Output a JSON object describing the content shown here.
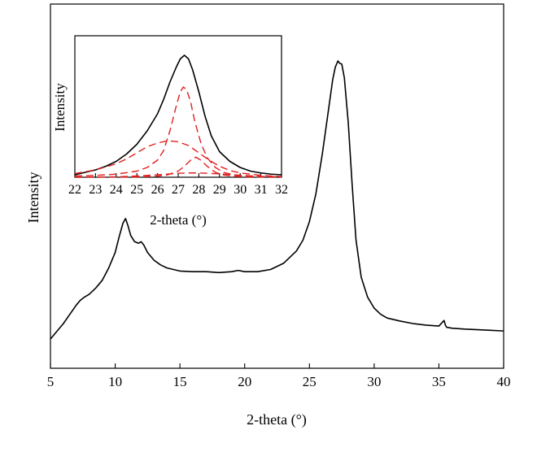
{
  "chart_data": [
    {
      "type": "line",
      "role": "main",
      "xlabel": "2-theta (°)",
      "ylabel": "Intensity",
      "xlim": [
        5,
        40
      ],
      "xticks": [
        "5",
        "10",
        "15",
        "20",
        "25",
        "30",
        "35",
        "40"
      ],
      "y_tick_labels": false,
      "ylim": [
        0,
        1
      ],
      "grid": false,
      "series": [
        {
          "color": "#000000",
          "style": "solid",
          "x": [
            5,
            5.5,
            6,
            6.5,
            7,
            7.3,
            7.6,
            8,
            8.5,
            9,
            9.5,
            10,
            10.3,
            10.6,
            10.8,
            11,
            11.2,
            11.5,
            11.8,
            12,
            12.2,
            12.5,
            13,
            13.5,
            14,
            15,
            16,
            17,
            18,
            19,
            19.5,
            20,
            21,
            22,
            23,
            24,
            24.5,
            25,
            25.5,
            26,
            26.5,
            26.8,
            27,
            27.2,
            27.35,
            27.5,
            27.7,
            28,
            28.3,
            28.6,
            29,
            29.5,
            30,
            30.5,
            31,
            32,
            33,
            34,
            35,
            35.4,
            35.5,
            35.6,
            36,
            37,
            38,
            39,
            40
          ],
          "y": [
            0.1,
            0.125,
            0.15,
            0.18,
            0.21,
            0.225,
            0.235,
            0.245,
            0.265,
            0.29,
            0.33,
            0.38,
            0.43,
            0.475,
            0.49,
            0.465,
            0.435,
            0.415,
            0.41,
            0.415,
            0.405,
            0.38,
            0.355,
            0.34,
            0.33,
            0.32,
            0.318,
            0.318,
            0.315,
            0.318,
            0.322,
            0.318,
            0.318,
            0.325,
            0.345,
            0.385,
            0.42,
            0.48,
            0.57,
            0.7,
            0.85,
            0.94,
            0.98,
            1.0,
            0.992,
            0.99,
            0.945,
            0.8,
            0.6,
            0.42,
            0.3,
            0.235,
            0.2,
            0.18,
            0.168,
            0.158,
            0.15,
            0.145,
            0.142,
            0.16,
            0.145,
            0.138,
            0.135,
            0.132,
            0.13,
            0.128,
            0.126
          ]
        }
      ]
    },
    {
      "type": "line",
      "role": "inset",
      "xlabel": "2-theta (°)",
      "ylabel": "Intensity",
      "xlim": [
        22,
        32
      ],
      "xticks": [
        "22",
        "23",
        "24",
        "25",
        "26",
        "27",
        "28",
        "29",
        "30",
        "31",
        "32"
      ],
      "y_tick_labels": false,
      "ylim": [
        0,
        1
      ],
      "grid": false,
      "series": [
        {
          "color": "#000000",
          "style": "solid",
          "x": [
            22,
            22.5,
            23,
            23.5,
            24,
            24.5,
            25,
            25.5,
            26,
            26.3,
            26.6,
            26.9,
            27.1,
            27.3,
            27.5,
            27.7,
            28,
            28.3,
            28.6,
            29,
            29.5,
            30,
            30.5,
            31,
            31.5,
            32
          ],
          "y": [
            0.02,
            0.04,
            0.06,
            0.09,
            0.13,
            0.19,
            0.27,
            0.38,
            0.52,
            0.64,
            0.78,
            0.9,
            0.97,
            1.0,
            0.97,
            0.88,
            0.7,
            0.5,
            0.34,
            0.21,
            0.13,
            0.08,
            0.05,
            0.035,
            0.025,
            0.02
          ]
        },
        {
          "color": "#e02020",
          "style": "dashed",
          "x": [
            22,
            23,
            24,
            24.5,
            25,
            25.5,
            26,
            26.5,
            27,
            27.5,
            28,
            28.5,
            29,
            29.5,
            30,
            31,
            32
          ],
          "y": [
            0.03,
            0.06,
            0.11,
            0.15,
            0.2,
            0.25,
            0.28,
            0.3,
            0.29,
            0.26,
            0.2,
            0.14,
            0.09,
            0.055,
            0.035,
            0.015,
            0.005
          ]
        },
        {
          "color": "#e02020",
          "style": "dashed",
          "x": [
            22,
            23,
            24,
            25,
            25.5,
            26,
            26.3,
            26.6,
            26.9,
            27.1,
            27.25,
            27.4,
            27.6,
            27.8,
            28.1,
            28.4,
            28.8,
            29.2,
            29.8,
            30.5,
            31,
            32
          ],
          "y": [
            0.01,
            0.015,
            0.025,
            0.05,
            0.08,
            0.14,
            0.22,
            0.38,
            0.58,
            0.7,
            0.74,
            0.72,
            0.62,
            0.46,
            0.28,
            0.16,
            0.08,
            0.04,
            0.015,
            0.008,
            0.005,
            0.002
          ]
        },
        {
          "color": "#e02020",
          "style": "dashed",
          "x": [
            22,
            25,
            26,
            26.5,
            27,
            27.3,
            27.6,
            27.85,
            28.1,
            28.4,
            28.8,
            29.2,
            29.8,
            30.5,
            32
          ],
          "y": [
            0,
            0.002,
            0.008,
            0.02,
            0.05,
            0.09,
            0.14,
            0.165,
            0.14,
            0.09,
            0.04,
            0.018,
            0.006,
            0.002,
            0
          ]
        },
        {
          "color": "#e02020",
          "style": "dashed",
          "x": [
            22,
            24,
            25,
            26,
            27,
            27.5,
            28,
            29,
            29.5,
            30,
            31,
            32
          ],
          "y": [
            0,
            0.003,
            0.01,
            0.02,
            0.032,
            0.035,
            0.035,
            0.028,
            0.022,
            0.016,
            0.007,
            0.003
          ]
        }
      ]
    }
  ]
}
